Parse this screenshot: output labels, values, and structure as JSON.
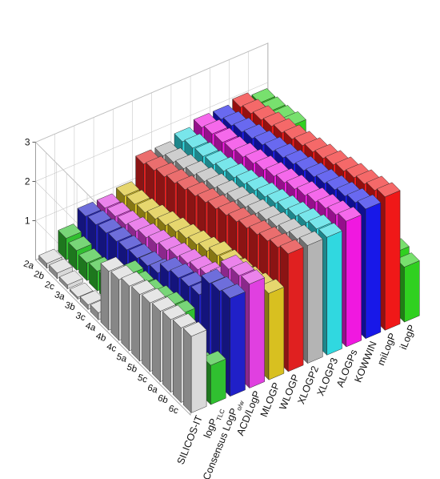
{
  "chart_data": {
    "type": "bar3d",
    "title": "",
    "zlabel": "",
    "zticks": [
      1,
      2,
      3
    ],
    "zlim": [
      0,
      3
    ],
    "rows": [
      "6c",
      "6b",
      "6a",
      "5c",
      "5b",
      "5a",
      "4c",
      "4b",
      "4a",
      "3c",
      "3b",
      "3a",
      "2c",
      "2b",
      "2a"
    ],
    "series": [
      {
        "name": "SILICOS-IT",
        "name_sub": "",
        "color": "#d9d9d9",
        "values": [
          1.95,
          1.9,
          1.85,
          1.8,
          1.75,
          1.7,
          1.65,
          1.55,
          1.5,
          0.18,
          0.12,
          0.05,
          0.1,
          0.14,
          0.12
        ]
      },
      {
        "name": "logP",
        "name_sub": "TLC",
        "color": "#30c030",
        "values": [
          1.0,
          0.7,
          1.1,
          1.5,
          1.45,
          1.35,
          1.25,
          1.2,
          1.2,
          0.6,
          0.55,
          0.5,
          0.45,
          0.5,
          0.55
        ]
      },
      {
        "name": "Consensus LogP",
        "name_sub": "o/w",
        "color": "#2020c8",
        "values": [
          2.5,
          2.42,
          2.35,
          1.8,
          1.75,
          1.7,
          1.6,
          1.3,
          1.22,
          1.15,
          1.1,
          1.05,
          1.0,
          0.95,
          0.9
        ]
      },
      {
        "name": "ACD/LogP",
        "name_sub": "",
        "color": "#e040e0",
        "values": [
          2.65,
          2.6,
          2.5,
          2.0,
          1.8,
          1.7,
          1.6,
          1.5,
          1.4,
          1.3,
          1.2,
          1.1,
          1.0,
          0.95,
          0.9
        ]
      },
      {
        "name": "MLOGP",
        "name_sub": "",
        "color": "#d8c020",
        "values": [
          2.2,
          2.1,
          2.0,
          1.95,
          1.9,
          1.85,
          1.7,
          1.6,
          1.5,
          1.4,
          1.3,
          1.2,
          1.1,
          1.05,
          1.0
        ]
      },
      {
        "name": "WLOGP",
        "name_sub": "",
        "color": "#e02020",
        "values": [
          3.0,
          2.9,
          2.8,
          2.7,
          2.6,
          2.5,
          2.4,
          2.3,
          2.2,
          2.1,
          2.0,
          1.9,
          1.8,
          1.7,
          1.6
        ]
      },
      {
        "name": "XLOGP2",
        "name_sub": "",
        "color": "#b4b4b4",
        "values": [
          3.0,
          2.9,
          2.8,
          2.7,
          2.6,
          2.5,
          2.4,
          2.3,
          2.2,
          2.1,
          2.0,
          1.9,
          1.8,
          1.7,
          1.6
        ]
      },
      {
        "name": "XLOGP3",
        "name_sub": "",
        "color": "#30d8e0",
        "values": [
          3.0,
          2.95,
          2.85,
          2.75,
          2.65,
          2.55,
          2.45,
          2.35,
          2.25,
          2.15,
          2.05,
          1.95,
          1.9,
          1.85,
          1.75
        ]
      },
      {
        "name": "ALOGPs",
        "name_sub": "",
        "color": "#f018e0",
        "values": [
          3.2,
          3.1,
          3.0,
          2.9,
          2.8,
          2.7,
          2.6,
          2.5,
          2.4,
          2.3,
          2.2,
          2.1,
          2.05,
          2.0,
          1.9
        ]
      },
      {
        "name": "KOWWIN",
        "name_sub": "",
        "color": "#1818e8",
        "values": [
          3.3,
          3.2,
          3.1,
          3.0,
          2.9,
          2.8,
          2.7,
          2.6,
          2.5,
          2.4,
          2.3,
          2.2,
          2.1,
          2.0,
          1.9
        ]
      },
      {
        "name": "miLogP",
        "name_sub": "",
        "color": "#f01818",
        "values": [
          3.4,
          3.3,
          3.2,
          3.1,
          3.0,
          2.9,
          2.8,
          2.7,
          2.6,
          2.5,
          2.4,
          2.3,
          2.2,
          2.1,
          2.0
        ]
      },
      {
        "name": "iLogP",
        "name_sub": "",
        "color": "#30d020",
        "values": [
          1.4,
          1.5,
          1.6,
          1.55,
          1.5,
          1.45,
          1.4,
          1.35,
          1.3,
          1.25,
          1.2,
          2.1,
          2.0,
          1.95,
          1.9
        ]
      }
    ],
    "grid": true,
    "legend": "none"
  }
}
